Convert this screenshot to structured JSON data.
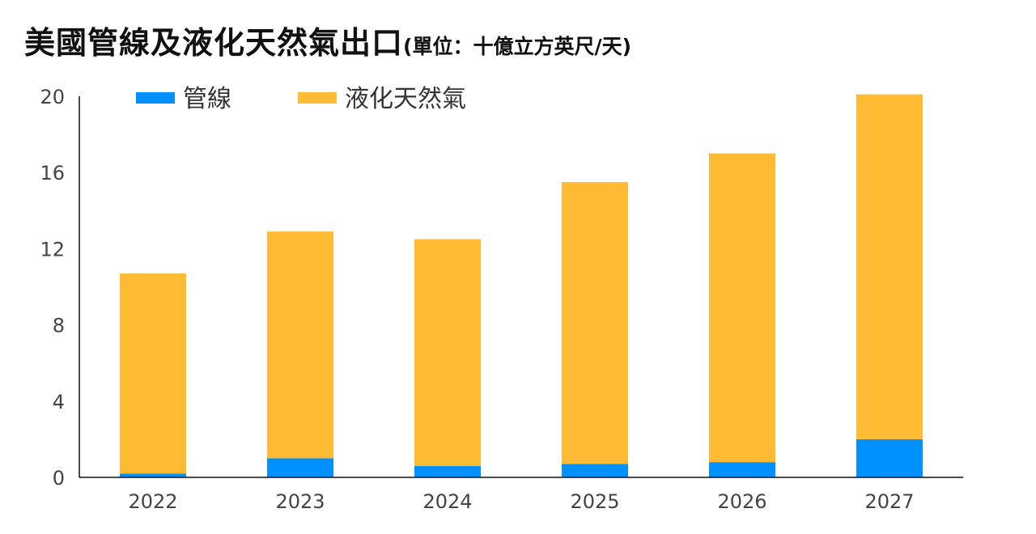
{
  "chart_data": {
    "type": "bar",
    "stacked": true,
    "title": "美國管線及液化天然氣出口",
    "subtitle": "(單位：十億立方英尺/天)",
    "categories": [
      "2022",
      "2023",
      "2024",
      "2025",
      "2026",
      "2027"
    ],
    "series": [
      {
        "name": "管線",
        "color": "#0091ff",
        "values": [
          0.2,
          1.0,
          0.6,
          0.7,
          0.8,
          2.0
        ]
      },
      {
        "name": "液化天然氣",
        "color": "#ffbb33",
        "values": [
          10.5,
          11.9,
          11.9,
          14.8,
          16.2,
          18.1
        ]
      }
    ],
    "yticks": [
      "0",
      "4",
      "8",
      "12",
      "16",
      "20"
    ],
    "ylim": [
      0,
      20
    ],
    "legend_position": "top-left",
    "grid": false
  }
}
